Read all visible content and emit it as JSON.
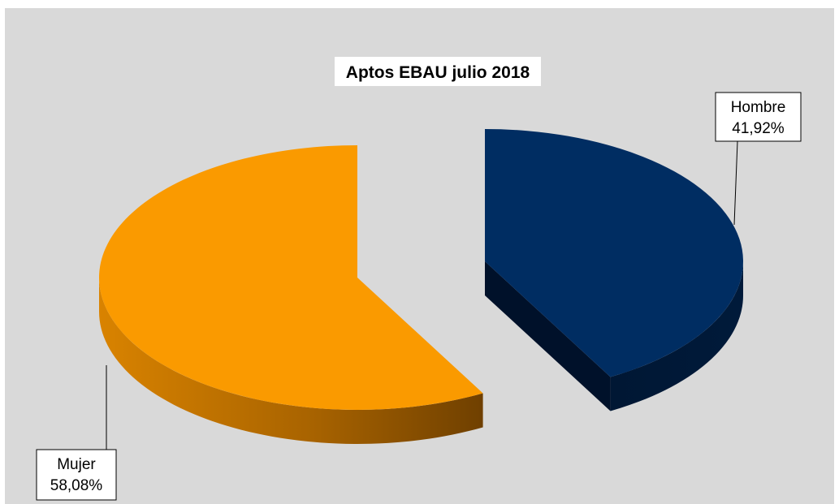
{
  "chart_data": {
    "type": "pie",
    "title": "Aptos EBAU julio 2018",
    "categories": [
      "Hombre",
      "Mujer"
    ],
    "values": [
      41.92,
      58.08
    ],
    "data_labels": [
      "41,92%",
      "58,08%"
    ],
    "colors": [
      "#002d62",
      "#fa9a00"
    ],
    "side_colors": [
      "#00142e",
      "#c87600"
    ],
    "exploded": true,
    "three_d": true,
    "legend": "none"
  }
}
